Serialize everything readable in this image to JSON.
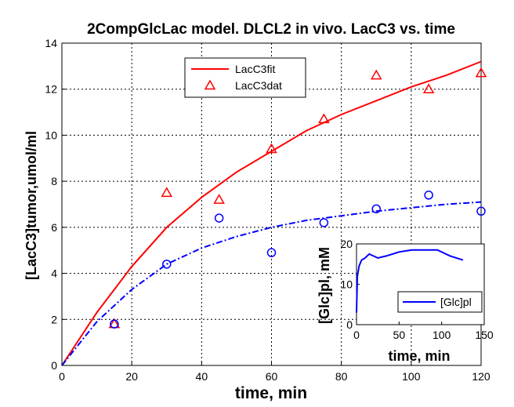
{
  "colors": {
    "fit": "#ff0000",
    "data": "#ff0000",
    "second_fit": "#0000ff",
    "second_data": "#0000ff",
    "inset_line": "#0000ff",
    "grid": "#000000",
    "axis": "#000000"
  },
  "chart_data": [
    {
      "type": "line",
      "title": "2CompGlcLac model. DLCL2 in vivo. LacC3 vs. time",
      "xlabel": "time, min",
      "ylabel": "[LacC3]tumor,umol/ml",
      "xlim": [
        0,
        120
      ],
      "ylim": [
        0,
        14
      ],
      "x_ticks": [
        0,
        20,
        40,
        60,
        80,
        100,
        120
      ],
      "y_ticks": [
        0,
        2,
        4,
        6,
        8,
        10,
        12,
        14
      ],
      "grid": true,
      "legend_position": "top-center",
      "series": [
        {
          "name": "LacC3fit",
          "style": "solid-line",
          "color": "#ff0000",
          "x": [
            0,
            10,
            20,
            30,
            40,
            50,
            60,
            70,
            80,
            90,
            100,
            110,
            120
          ],
          "y": [
            0,
            2.3,
            4.3,
            6.0,
            7.3,
            8.4,
            9.3,
            10.2,
            10.9,
            11.5,
            12.1,
            12.6,
            13.2
          ]
        },
        {
          "name": "LacC3dat",
          "style": "triangle-markers",
          "color": "#ff0000",
          "x": [
            15,
            30,
            45,
            60,
            75,
            90,
            105,
            120
          ],
          "y": [
            1.8,
            7.5,
            7.2,
            9.4,
            10.7,
            12.6,
            12.0,
            12.7
          ]
        },
        {
          "style": "dash-dot-line",
          "color": "#0000ff",
          "x": [
            0,
            10,
            20,
            30,
            40,
            50,
            60,
            70,
            80,
            90,
            100,
            110,
            120
          ],
          "y": [
            0,
            1.9,
            3.3,
            4.4,
            5.1,
            5.6,
            6.0,
            6.3,
            6.5,
            6.7,
            6.85,
            7.0,
            7.1
          ]
        },
        {
          "style": "circle-markers",
          "color": "#0000ff",
          "x": [
            15,
            30,
            45,
            60,
            75,
            90,
            105,
            120
          ],
          "y": [
            1.8,
            4.4,
            6.4,
            4.9,
            6.2,
            6.8,
            7.4,
            6.7
          ]
        }
      ]
    },
    {
      "type": "line",
      "title": "",
      "xlabel": "time, min",
      "ylabel": "[Glc]pl, mM",
      "xlim": [
        0,
        150
      ],
      "ylim": [
        0,
        20
      ],
      "x_ticks": [
        0,
        50,
        100,
        150
      ],
      "y_ticks": [
        0,
        10,
        20
      ],
      "grid": false,
      "legend_position": "bottom-right",
      "series": [
        {
          "name": "[Glc]pl",
          "style": "solid-line",
          "color": "#0000ff",
          "x": [
            0,
            1,
            3,
            6,
            10,
            15,
            25,
            35,
            50,
            65,
            80,
            95,
            110,
            125
          ],
          "y": [
            3,
            12,
            14.5,
            16,
            16.5,
            17.5,
            16.5,
            17,
            18,
            18.5,
            18.5,
            18.5,
            17,
            16
          ]
        }
      ]
    }
  ]
}
